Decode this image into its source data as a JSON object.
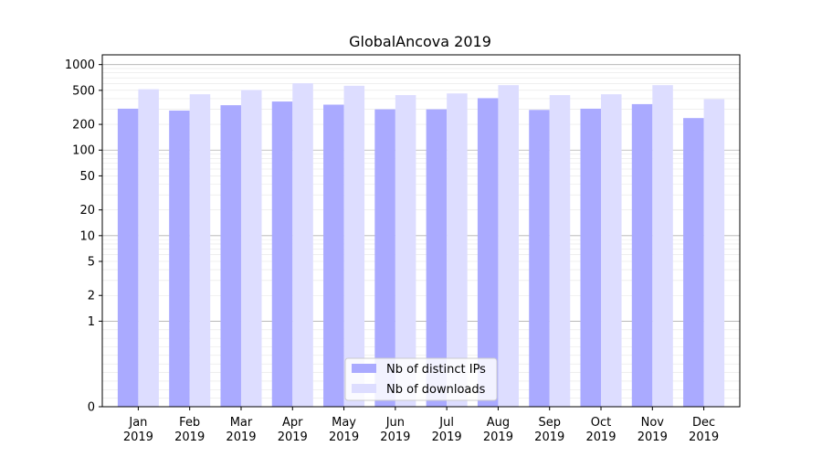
{
  "chart_data": {
    "type": "bar",
    "title": "GlobalAncova 2019",
    "xlabel": "",
    "ylabel": "",
    "yscale": "symlog",
    "ylim": [
      0,
      1300
    ],
    "grid": true,
    "legend_position": "bottom-center",
    "categories": [
      [
        "Jan",
        "2019"
      ],
      [
        "Feb",
        "2019"
      ],
      [
        "Mar",
        "2019"
      ],
      [
        "Apr",
        "2019"
      ],
      [
        "May",
        "2019"
      ],
      [
        "Jun",
        "2019"
      ],
      [
        "Jul",
        "2019"
      ],
      [
        "Aug",
        "2019"
      ],
      [
        "Sep",
        "2019"
      ],
      [
        "Oct",
        "2019"
      ],
      [
        "Nov",
        "2019"
      ],
      [
        "Dec",
        "2019"
      ]
    ],
    "y_ticks": [
      "0",
      "1",
      "2",
      "5",
      "10",
      "20",
      "50",
      "100",
      "200",
      "500",
      "1000"
    ],
    "series": [
      {
        "name": "Nb of distinct IPs",
        "color": "#aaaaff",
        "values": [
          305,
          290,
          335,
          370,
          340,
          300,
          300,
          405,
          295,
          305,
          345,
          237
        ]
      },
      {
        "name": "Nb of downloads",
        "color": "#ddddff",
        "values": [
          515,
          450,
          505,
          605,
          565,
          440,
          460,
          575,
          440,
          450,
          575,
          395
        ]
      }
    ]
  }
}
